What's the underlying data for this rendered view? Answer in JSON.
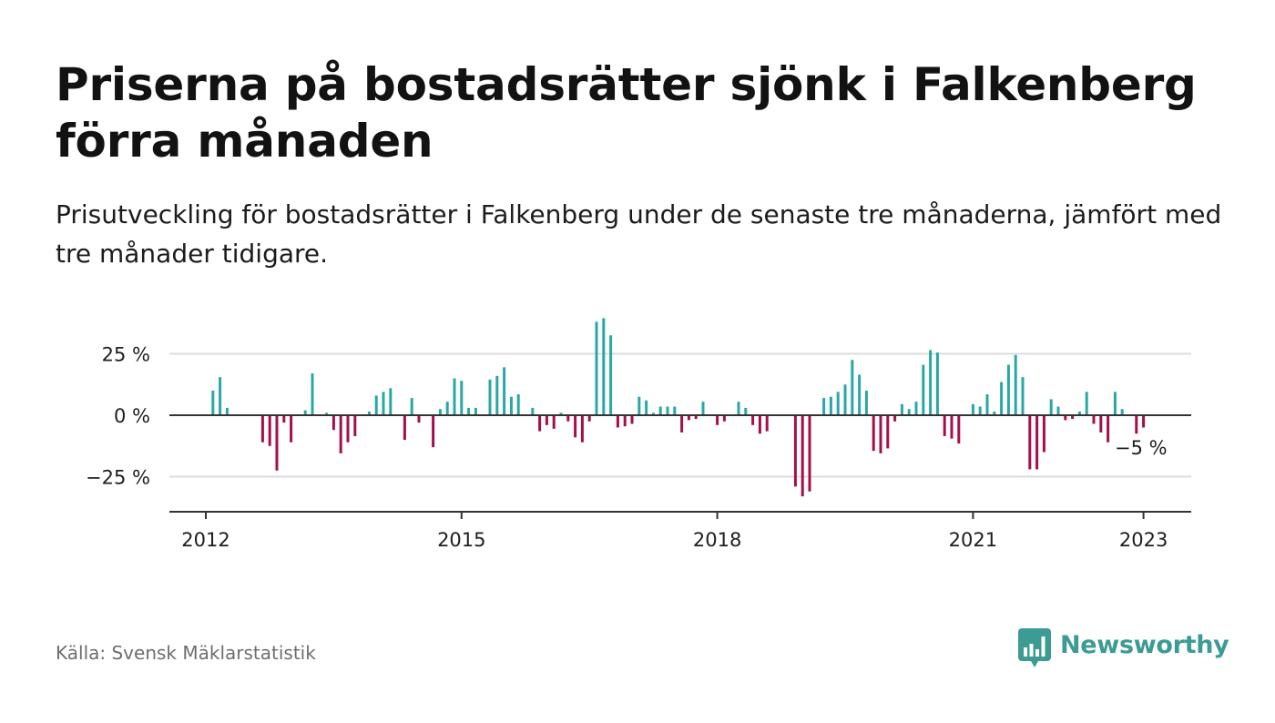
{
  "header": {
    "title": "Priserna på bostadsrätter sjönk i Falkenberg förra månaden",
    "subtitle": "Prisutveckling för bostadsrätter i Falkenberg under de senaste tre månaderna, jämfört med tre månader tidigare."
  },
  "footer": {
    "source": "Källa: Svensk Mäklarstatistik",
    "brand": "Newsworthy"
  },
  "colors": {
    "positive": "#2aa7a3",
    "negative": "#a50e4a",
    "gridline": "#dcdcdc",
    "axis": "#333333",
    "brand": "#3d9b96"
  },
  "icons": {
    "brand_logo": "newsworthy-bar-chart-logo-icon"
  },
  "chart_data": {
    "type": "bar",
    "title": "",
    "xlabel": "",
    "ylabel": "",
    "ylim": [
      -40,
      40
    ],
    "y_ticks": [
      {
        "value": 25,
        "label": "25 %"
      },
      {
        "value": 0,
        "label": "0 %"
      },
      {
        "value": -25,
        "label": "−25 %"
      }
    ],
    "x_ticks": [
      {
        "value": "2012-01",
        "label": "2012"
      },
      {
        "value": "2015-01",
        "label": "2015"
      },
      {
        "value": "2018-01",
        "label": "2018"
      },
      {
        "value": "2021-01",
        "label": "2021"
      },
      {
        "value": "2023-01",
        "label": "2023"
      }
    ],
    "x_range": [
      "2011-10",
      "2023-06"
    ],
    "grid": true,
    "legend": "none",
    "last_value_label": "−5 %",
    "series": [
      {
        "values": [
          [
            "2012-02",
            10
          ],
          [
            "2012-03",
            15.5
          ],
          [
            "2012-04",
            3
          ],
          [
            "2012-09",
            -11
          ],
          [
            "2012-10",
            -12.5
          ],
          [
            "2012-11",
            -22.5
          ],
          [
            "2012-12",
            -3
          ],
          [
            "2013-01",
            -11
          ],
          [
            "2013-03",
            2
          ],
          [
            "2013-04",
            17
          ],
          [
            "2013-06",
            1
          ],
          [
            "2013-07",
            -6
          ],
          [
            "2013-08",
            -15.5
          ],
          [
            "2013-09",
            -11
          ],
          [
            "2013-10",
            -8.5
          ],
          [
            "2013-12",
            1.5
          ],
          [
            "2014-01",
            8
          ],
          [
            "2014-02",
            9.5
          ],
          [
            "2014-03",
            11
          ],
          [
            "2014-05",
            -10
          ],
          [
            "2014-06",
            7
          ],
          [
            "2014-07",
            -3
          ],
          [
            "2014-09",
            -13
          ],
          [
            "2014-10",
            2.5
          ],
          [
            "2014-11",
            5.5
          ],
          [
            "2014-12",
            15
          ],
          [
            "2015-01",
            14
          ],
          [
            "2015-02",
            3
          ],
          [
            "2015-03",
            3
          ],
          [
            "2015-05",
            14.5
          ],
          [
            "2015-06",
            16
          ],
          [
            "2015-07",
            19.5
          ],
          [
            "2015-08",
            7.5
          ],
          [
            "2015-09",
            8.5
          ],
          [
            "2015-11",
            3
          ],
          [
            "2015-12",
            -6.5
          ],
          [
            "2016-01",
            -4
          ],
          [
            "2016-02",
            -5.5
          ],
          [
            "2016-03",
            1
          ],
          [
            "2016-04",
            -2.5
          ],
          [
            "2016-05",
            -9
          ],
          [
            "2016-06",
            -11
          ],
          [
            "2016-07",
            -2.5
          ],
          [
            "2016-08",
            38
          ],
          [
            "2016-09",
            39.5
          ],
          [
            "2016-10",
            32.5
          ],
          [
            "2016-11",
            -5
          ],
          [
            "2016-12",
            -4.5
          ],
          [
            "2017-01",
            -3.5
          ],
          [
            "2017-02",
            7.5
          ],
          [
            "2017-03",
            6
          ],
          [
            "2017-04",
            1
          ],
          [
            "2017-05",
            3.5
          ],
          [
            "2017-06",
            3.5
          ],
          [
            "2017-07",
            3.5
          ],
          [
            "2017-08",
            -7
          ],
          [
            "2017-09",
            -2
          ],
          [
            "2017-10",
            -1.5
          ],
          [
            "2017-11",
            5.5
          ],
          [
            "2018-01",
            -4
          ],
          [
            "2018-02",
            -2.5
          ],
          [
            "2018-04",
            5.5
          ],
          [
            "2018-05",
            3
          ],
          [
            "2018-06",
            -4
          ],
          [
            "2018-07",
            -7.5
          ],
          [
            "2018-08",
            -6.5
          ],
          [
            "2018-12",
            -29
          ],
          [
            "2019-01",
            -33
          ],
          [
            "2019-02",
            -31
          ],
          [
            "2019-04",
            7
          ],
          [
            "2019-05",
            7.5
          ],
          [
            "2019-06",
            9.5
          ],
          [
            "2019-07",
            12.5
          ],
          [
            "2019-08",
            22.5
          ],
          [
            "2019-09",
            16.5
          ],
          [
            "2019-10",
            10
          ],
          [
            "2019-11",
            -14.5
          ],
          [
            "2019-12",
            -15.5
          ],
          [
            "2020-01",
            -13.5
          ],
          [
            "2020-02",
            -2.5
          ],
          [
            "2020-03",
            4.5
          ],
          [
            "2020-04",
            2.5
          ],
          [
            "2020-05",
            5.5
          ],
          [
            "2020-06",
            20.5
          ],
          [
            "2020-07",
            26.5
          ],
          [
            "2020-08",
            25.5
          ],
          [
            "2020-09",
            -8.5
          ],
          [
            "2020-10",
            -9.5
          ],
          [
            "2020-11",
            -11.5
          ],
          [
            "2021-01",
            4.5
          ],
          [
            "2021-02",
            3.5
          ],
          [
            "2021-03",
            8.5
          ],
          [
            "2021-04",
            1.5
          ],
          [
            "2021-05",
            13.5
          ],
          [
            "2021-06",
            20.5
          ],
          [
            "2021-07",
            24.5
          ],
          [
            "2021-08",
            15.5
          ],
          [
            "2021-09",
            -22
          ],
          [
            "2021-10",
            -22
          ],
          [
            "2021-11",
            -15
          ],
          [
            "2021-12",
            6.5
          ],
          [
            "2022-01",
            3.5
          ],
          [
            "2022-02",
            -2
          ],
          [
            "2022-03",
            -1.5
          ],
          [
            "2022-04",
            1.5
          ],
          [
            "2022-05",
            9.5
          ],
          [
            "2022-06",
            -3.5
          ],
          [
            "2022-07",
            -7
          ],
          [
            "2022-08",
            -11
          ],
          [
            "2022-09",
            9.5
          ],
          [
            "2022-10",
            2.5
          ],
          [
            "2022-12",
            -7.5
          ],
          [
            "2023-01",
            -5
          ]
        ]
      }
    ]
  }
}
